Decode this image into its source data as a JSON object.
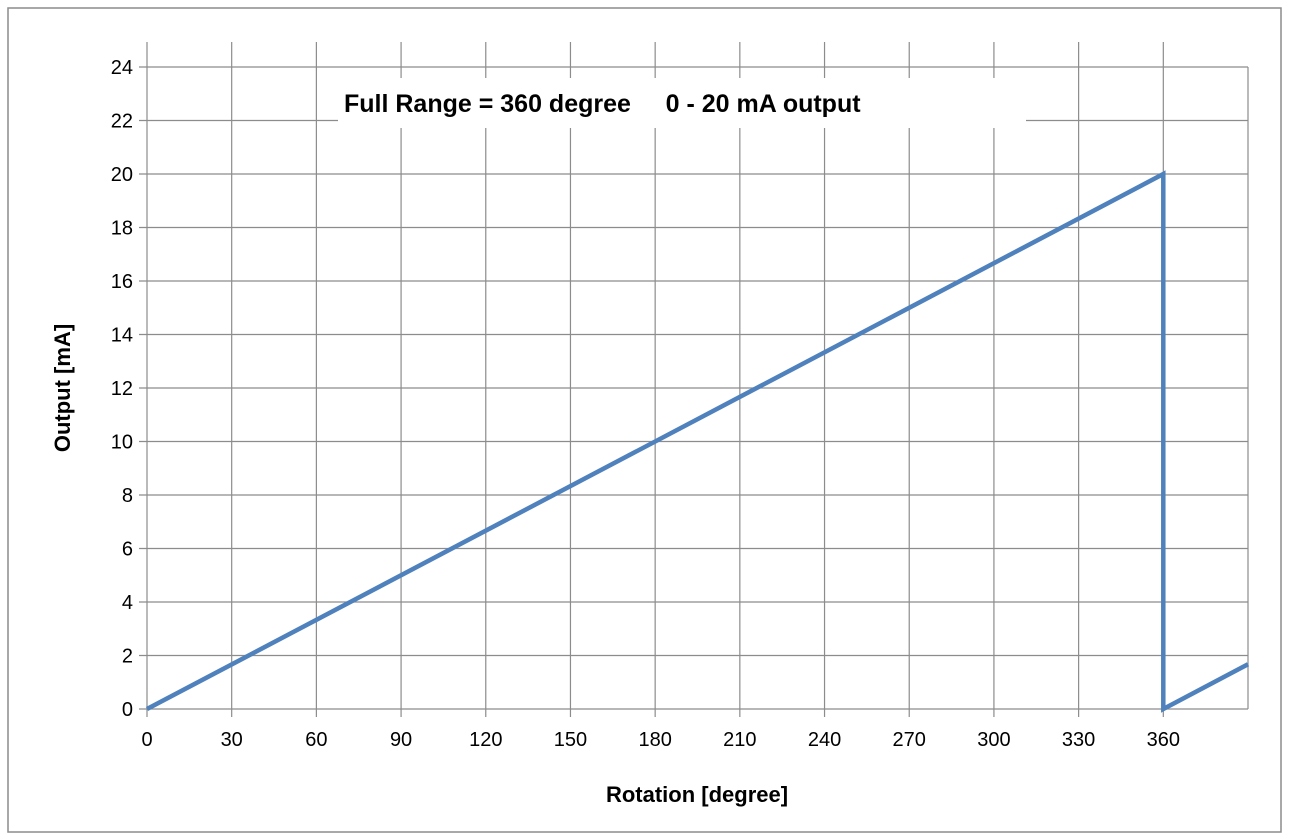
{
  "chart_data": {
    "type": "line",
    "title": "Full Range = 360 degree     0 - 20 mA output",
    "xlabel": "Rotation [degree]",
    "ylabel": "Output [mA]",
    "xlim": [
      0,
      390
    ],
    "ylim": [
      0,
      24
    ],
    "xticks": [
      0,
      30,
      60,
      90,
      120,
      150,
      180,
      210,
      240,
      270,
      300,
      330,
      360
    ],
    "yticks": [
      0,
      2,
      4,
      6,
      8,
      10,
      12,
      14,
      16,
      18,
      20,
      22,
      24
    ],
    "grid": true,
    "legend": "none",
    "series": [
      {
        "color": "#4f81bd",
        "x": [
          0,
          360,
          360,
          390
        ],
        "y": [
          0,
          20,
          0,
          1.67
        ]
      }
    ]
  }
}
